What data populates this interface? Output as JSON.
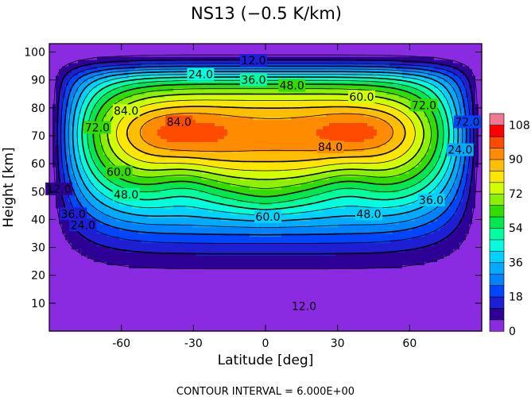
{
  "chart_data": {
    "type": "contour",
    "title": "NS13 (−0.5 K/km)",
    "xlabel": "Latitude [deg]",
    "ylabel": "Height [km]",
    "xlim": [
      -90,
      90
    ],
    "ylim": [
      0,
      103
    ],
    "xticks": [
      -60,
      -30,
      0,
      30,
      60
    ],
    "yticks": [
      10,
      20,
      30,
      40,
      50,
      60,
      70,
      80,
      90,
      100
    ],
    "contour_interval_text": "CONTOUR INTERVAL = 6.000E+00",
    "contour_interval": 6,
    "levels": [
      0,
      6,
      12,
      18,
      24,
      30,
      36,
      42,
      48,
      54,
      60,
      66,
      72,
      78,
      84,
      90,
      96,
      102,
      108,
      114
    ],
    "colorbar": {
      "tick_labels": [
        "108",
        "90",
        "72",
        "54",
        "36",
        "18",
        "0"
      ],
      "tick_values": [
        108,
        90,
        72,
        54,
        36,
        18,
        0
      ],
      "colors": [
        "#8a2be2",
        "#2d0096",
        "#1e1ed2",
        "#0046ff",
        "#0082ff",
        "#00aaff",
        "#00d2ff",
        "#00ffdc",
        "#00ffa0",
        "#00e650",
        "#32dc00",
        "#8cf000",
        "#d2ff00",
        "#ffe600",
        "#ffbe00",
        "#ff8c00",
        "#ff4b00",
        "#ff0000",
        "#f07890"
      ]
    },
    "contour_labels": [
      {
        "text": "12.0",
        "lat": -5,
        "h": 97
      },
      {
        "text": "24.0",
        "lat": -27,
        "h": 92
      },
      {
        "text": "36.0",
        "lat": -5,
        "h": 90
      },
      {
        "text": "48.0",
        "lat": 11,
        "h": 88
      },
      {
        "text": "60.0",
        "lat": 40,
        "h": 84
      },
      {
        "text": "72.0",
        "lat": 66,
        "h": 81
      },
      {
        "text": "84.0",
        "lat": -58,
        "h": 79
      },
      {
        "text": "72.0",
        "lat": -70,
        "h": 73
      },
      {
        "text": "84.0",
        "lat": -36,
        "h": 75
      },
      {
        "text": "84.0",
        "lat": 27,
        "h": 66
      },
      {
        "text": "72.0",
        "lat": 84,
        "h": 75
      },
      {
        "text": "24.0",
        "lat": 81,
        "h": 65
      },
      {
        "text": "60.0",
        "lat": -61,
        "h": 57
      },
      {
        "text": "48.0",
        "lat": -58,
        "h": 49
      },
      {
        "text": "36.0",
        "lat": -80,
        "h": 42
      },
      {
        "text": "24.0",
        "lat": -76,
        "h": 38
      },
      {
        "text": "12.0",
        "lat": -86,
        "h": 51
      },
      {
        "text": "60.0",
        "lat": 1,
        "h": 41
      },
      {
        "text": "48.0",
        "lat": 43,
        "h": 42
      },
      {
        "text": "36.0",
        "lat": 69,
        "h": 47
      },
      {
        "text": "12.0",
        "lat": 16,
        "h": 9
      }
    ]
  }
}
